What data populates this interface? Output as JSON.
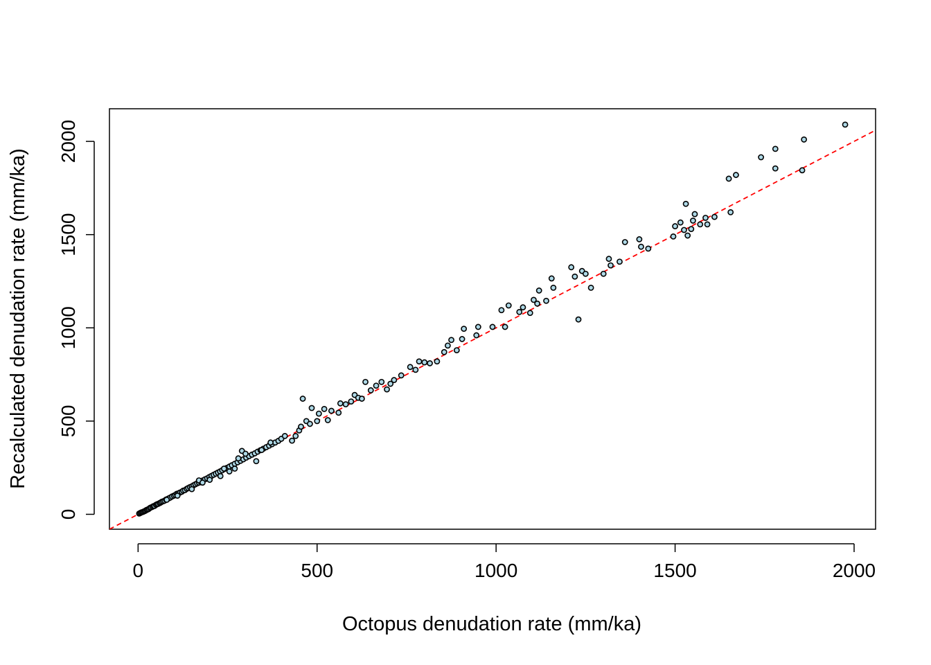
{
  "chart_data": {
    "type": "scatter",
    "title": "",
    "xlabel": "Octopus denudation rate (mm/ka)",
    "ylabel": "Recalculated denudation rate (mm/ka)",
    "xlim": [
      -80,
      2060
    ],
    "ylim": [
      -80,
      2175
    ],
    "xticks": [
      0,
      500,
      1000,
      1500,
      2000
    ],
    "yticks": [
      0,
      500,
      1000,
      1500,
      2000
    ],
    "xtick_labels": [
      "0",
      "500",
      "1000",
      "1500",
      "2000"
    ],
    "ytick_labels": [
      "0",
      "500",
      "1000",
      "1500",
      "2000"
    ],
    "reference_line": {
      "slope": 1,
      "intercept": 0,
      "style": "dashed",
      "color": "#ff0000"
    },
    "marker": {
      "fill": "#add8e6",
      "stroke": "#000000"
    },
    "grid": false,
    "points": [
      [
        3,
        4
      ],
      [
        6,
        7
      ],
      [
        9,
        10
      ],
      [
        12,
        12
      ],
      [
        15,
        14
      ],
      [
        18,
        17
      ],
      [
        21,
        20
      ],
      [
        24,
        24
      ],
      [
        27,
        26
      ],
      [
        30,
        29
      ],
      [
        33,
        34
      ],
      [
        36,
        37
      ],
      [
        40,
        40
      ],
      [
        43,
        44
      ],
      [
        46,
        45
      ],
      [
        50,
        51
      ],
      [
        53,
        54
      ],
      [
        56,
        56
      ],
      [
        60,
        60
      ],
      [
        63,
        63
      ],
      [
        66,
        67
      ],
      [
        70,
        70
      ],
      [
        74,
        73
      ],
      [
        78,
        79
      ],
      [
        82,
        82
      ],
      [
        86,
        86
      ],
      [
        90,
        90
      ],
      [
        95,
        96
      ],
      [
        100,
        100
      ],
      [
        104,
        104
      ],
      [
        108,
        110
      ],
      [
        112,
        112
      ],
      [
        117,
        117
      ],
      [
        122,
        121
      ],
      [
        126,
        127
      ],
      [
        131,
        130
      ],
      [
        136,
        137
      ],
      [
        140,
        141
      ],
      [
        145,
        146
      ],
      [
        150,
        150
      ],
      [
        155,
        156
      ],
      [
        160,
        161
      ],
      [
        165,
        166
      ],
      [
        170,
        170
      ],
      [
        175,
        175
      ],
      [
        181,
        182
      ],
      [
        187,
        188
      ],
      [
        193,
        193
      ],
      [
        199,
        200
      ],
      [
        205,
        206
      ],
      [
        211,
        212
      ],
      [
        217,
        218
      ],
      [
        223,
        224
      ],
      [
        229,
        230
      ],
      [
        235,
        236
      ],
      [
        241,
        243
      ],
      [
        248,
        249
      ],
      [
        255,
        256
      ],
      [
        262,
        263
      ],
      [
        270,
        271
      ],
      [
        278,
        279
      ],
      [
        286,
        287
      ],
      [
        294,
        295
      ],
      [
        302,
        304
      ],
      [
        310,
        312
      ],
      [
        318,
        320
      ],
      [
        326,
        327
      ],
      [
        334,
        336
      ],
      [
        342,
        344
      ],
      [
        350,
        352
      ],
      [
        358,
        360
      ],
      [
        366,
        368
      ],
      [
        374,
        376
      ],
      [
        383,
        385
      ],
      [
        392,
        394
      ],
      [
        80,
        78
      ],
      [
        110,
        100
      ],
      [
        150,
        135
      ],
      [
        170,
        182
      ],
      [
        180,
        170
      ],
      [
        200,
        185
      ],
      [
        230,
        205
      ],
      [
        240,
        245
      ],
      [
        255,
        230
      ],
      [
        270,
        245
      ],
      [
        280,
        300
      ],
      [
        290,
        340
      ],
      [
        300,
        325
      ],
      [
        330,
        285
      ],
      [
        345,
        345
      ],
      [
        370,
        385
      ],
      [
        400,
        405
      ],
      [
        410,
        420
      ],
      [
        430,
        395
      ],
      [
        440,
        420
      ],
      [
        450,
        450
      ],
      [
        455,
        470
      ],
      [
        460,
        620
      ],
      [
        470,
        500
      ],
      [
        480,
        485
      ],
      [
        485,
        570
      ],
      [
        500,
        500
      ],
      [
        505,
        540
      ],
      [
        520,
        565
      ],
      [
        530,
        505
      ],
      [
        540,
        555
      ],
      [
        560,
        545
      ],
      [
        565,
        595
      ],
      [
        580,
        590
      ],
      [
        595,
        605
      ],
      [
        605,
        640
      ],
      [
        615,
        625
      ],
      [
        625,
        620
      ],
      [
        635,
        710
      ],
      [
        650,
        665
      ],
      [
        665,
        690
      ],
      [
        680,
        710
      ],
      [
        695,
        670
      ],
      [
        705,
        700
      ],
      [
        715,
        720
      ],
      [
        735,
        745
      ],
      [
        760,
        790
      ],
      [
        775,
        775
      ],
      [
        785,
        820
      ],
      [
        800,
        815
      ],
      [
        815,
        810
      ],
      [
        835,
        820
      ],
      [
        855,
        870
      ],
      [
        865,
        905
      ],
      [
        875,
        935
      ],
      [
        890,
        880
      ],
      [
        905,
        940
      ],
      [
        910,
        995
      ],
      [
        945,
        960
      ],
      [
        950,
        1005
      ],
      [
        990,
        1005
      ],
      [
        1015,
        1095
      ],
      [
        1025,
        1005
      ],
      [
        1035,
        1120
      ],
      [
        1065,
        1085
      ],
      [
        1075,
        1110
      ],
      [
        1095,
        1080
      ],
      [
        1105,
        1150
      ],
      [
        1115,
        1130
      ],
      [
        1140,
        1145
      ],
      [
        1155,
        1265
      ],
      [
        1160,
        1215
      ],
      [
        1120,
        1200
      ],
      [
        1210,
        1325
      ],
      [
        1220,
        1275
      ],
      [
        1230,
        1045
      ],
      [
        1240,
        1305
      ],
      [
        1250,
        1290
      ],
      [
        1265,
        1215
      ],
      [
        1300,
        1290
      ],
      [
        1315,
        1370
      ],
      [
        1320,
        1335
      ],
      [
        1345,
        1355
      ],
      [
        1360,
        1460
      ],
      [
        1400,
        1475
      ],
      [
        1405,
        1435
      ],
      [
        1425,
        1425
      ],
      [
        1495,
        1490
      ],
      [
        1500,
        1545
      ],
      [
        1515,
        1565
      ],
      [
        1525,
        1525
      ],
      [
        1530,
        1665
      ],
      [
        1535,
        1495
      ],
      [
        1545,
        1530
      ],
      [
        1550,
        1575
      ],
      [
        1555,
        1610
      ],
      [
        1570,
        1555
      ],
      [
        1585,
        1590
      ],
      [
        1590,
        1555
      ],
      [
        1610,
        1595
      ],
      [
        1650,
        1800
      ],
      [
        1655,
        1620
      ],
      [
        1670,
        1820
      ],
      [
        1740,
        1915
      ],
      [
        1780,
        1855
      ],
      [
        1780,
        1960
      ],
      [
        1855,
        1845
      ],
      [
        1860,
        2010
      ],
      [
        1975,
        2090
      ]
    ]
  }
}
